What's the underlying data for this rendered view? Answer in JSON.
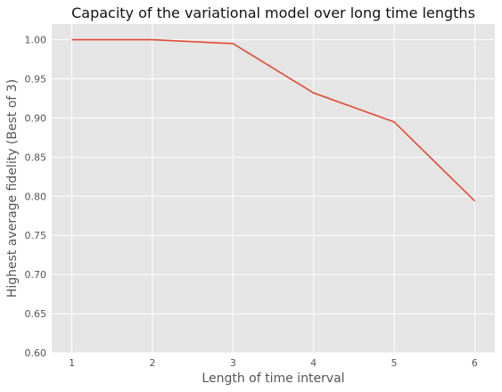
{
  "chart_data": {
    "type": "line",
    "title": "Capacity of the variational model over long time lengths",
    "xlabel": "Length of time interval",
    "ylabel": "Highest average fidelity (Best of 3)",
    "x": [
      1,
      2,
      3,
      4,
      5,
      6
    ],
    "series": [
      {
        "values": [
          1.0,
          1.0,
          0.995,
          0.932,
          0.895,
          0.794
        ],
        "color": "#e24a33"
      }
    ],
    "xlim": [
      0.75,
      6.25
    ],
    "ylim": [
      0.6,
      1.02
    ],
    "xticks": [
      1,
      2,
      3,
      4,
      5,
      6
    ],
    "yticks": [
      0.6,
      0.65,
      0.7,
      0.75,
      0.8,
      0.85,
      0.9,
      0.95,
      1.0
    ],
    "xtick_labels": [
      "1",
      "2",
      "3",
      "4",
      "5",
      "6"
    ],
    "ytick_labels": [
      "0.60",
      "0.65",
      "0.70",
      "0.75",
      "0.80",
      "0.85",
      "0.90",
      "0.95",
      "1.00"
    ],
    "grid": true,
    "style": "ggplot",
    "plot_background": "#e5e5e5",
    "grid_color": "#ffffff"
  }
}
